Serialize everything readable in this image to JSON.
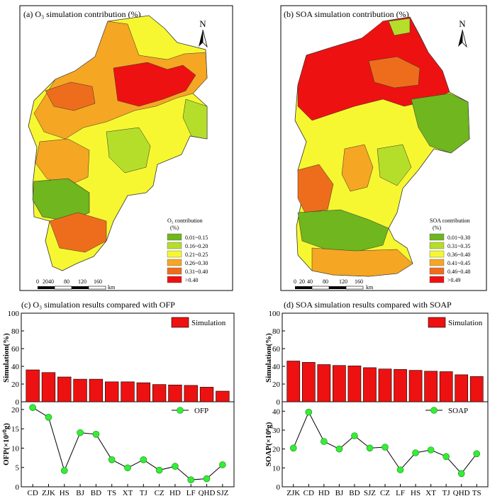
{
  "maps": [
    {
      "title": "(a) O₃ simulation contribution (%)",
      "north": "N",
      "legend_title": "O₃ contribution",
      "legend_unit": "(%)",
      "legend": [
        {
          "label": "0.01~0.15",
          "color": "#6fb61f"
        },
        {
          "label": "0.16~0.20",
          "color": "#b5de2b"
        },
        {
          "label": "0.21~0.25",
          "color": "#f7f731"
        },
        {
          "label": "0.26~0.30",
          "color": "#f5a623"
        },
        {
          "label": "0.31~0.40",
          "color": "#ee6d1c"
        },
        {
          "label": ">0.40",
          "color": "#ee1111"
        }
      ],
      "scale_labels": [
        "0",
        "2040",
        "80",
        "120",
        "160"
      ],
      "scale_unit": "km"
    },
    {
      "title": "(b) SOA simulation contribution (%)",
      "north": "N",
      "legend_title": "SOA contribution",
      "legend_unit": "(%)",
      "legend": [
        {
          "label": "0.01~0.30",
          "color": "#6fb61f"
        },
        {
          "label": "0.31~0.35",
          "color": "#b5de2b"
        },
        {
          "label": "0.36~0.40",
          "color": "#f7f731"
        },
        {
          "label": "0.41~0.45",
          "color": "#f5a623"
        },
        {
          "label": "0.46~0.48",
          "color": "#ee6d1c"
        },
        {
          "label": ">0.49",
          "color": "#ee1111"
        }
      ],
      "scale_labels": [
        "0",
        "20",
        "40",
        "80",
        "120",
        "160"
      ],
      "scale_unit": "km"
    }
  ],
  "chart_data": [
    {
      "type": "bar",
      "title": "(c) O₃ simulation results compared with OFP",
      "categories": [
        "CD",
        "ZJK",
        "HS",
        "BJ",
        "BD",
        "TS",
        "XT",
        "TJ",
        "CZ",
        "HD",
        "LF",
        "QHD",
        "SJZ"
      ],
      "series": [
        {
          "name": "Simulation",
          "values": [
            36,
            33,
            28,
            25.5,
            25.5,
            22.5,
            22.5,
            21.5,
            19.5,
            19,
            18.5,
            16.5,
            12
          ]
        }
      ],
      "ylabel": "Simulation(%)",
      "ylim": [
        0,
        100
      ],
      "yticks": [
        0,
        20,
        40,
        60,
        80,
        100
      ],
      "legend_position": "top-right"
    },
    {
      "type": "line",
      "categories": [
        "CD",
        "ZJK",
        "HS",
        "BJ",
        "BD",
        "TS",
        "XT",
        "TJ",
        "CZ",
        "HD",
        "LF",
        "QHD",
        "SJZ"
      ],
      "series": [
        {
          "name": "OFP",
          "values": [
            20.5,
            18,
            4.2,
            14,
            13.6,
            7,
            4.9,
            7,
            4.3,
            5.3,
            1.8,
            2.1,
            5.7
          ]
        }
      ],
      "ylabel": "OFP(×10¹⁰g)",
      "ylim": [
        0,
        22
      ],
      "yticks": [
        0,
        5,
        10,
        15,
        20
      ],
      "legend_position": "top-right"
    },
    {
      "type": "bar",
      "title": "(d) SOA simulation results compared with SOAP",
      "categories": [
        "ZJK",
        "CD",
        "HD",
        "BJ",
        "BD",
        "SJZ",
        "CZ",
        "LF",
        "HS",
        "XT",
        "TJ",
        "QHD",
        "TS"
      ],
      "series": [
        {
          "name": "Simulation",
          "values": [
            46,
            44.5,
            42,
            41,
            40.5,
            38.5,
            37,
            36.5,
            35.5,
            34.5,
            34,
            30.5,
            28.5
          ]
        }
      ],
      "ylabel": "Simulation(%)",
      "ylim": [
        0,
        100
      ],
      "yticks": [
        0,
        20,
        40,
        60,
        80,
        100
      ],
      "legend_position": "top-right"
    },
    {
      "type": "line",
      "categories": [
        "ZJK",
        "CD",
        "HD",
        "BJ",
        "BD",
        "SJZ",
        "CZ",
        "LF",
        "HS",
        "XT",
        "TJ",
        "QHD",
        "TS"
      ],
      "series": [
        {
          "name": "SOAP",
          "values": [
            20.5,
            39.5,
            24,
            20,
            27,
            20.5,
            21,
            9,
            18,
            19.5,
            16,
            7,
            17.5
          ]
        }
      ],
      "ylabel": "SOAP(×10⁸g)",
      "ylim": [
        0,
        45
      ],
      "yticks": [
        0,
        10,
        20,
        30,
        40
      ],
      "legend_position": "top-right"
    }
  ]
}
